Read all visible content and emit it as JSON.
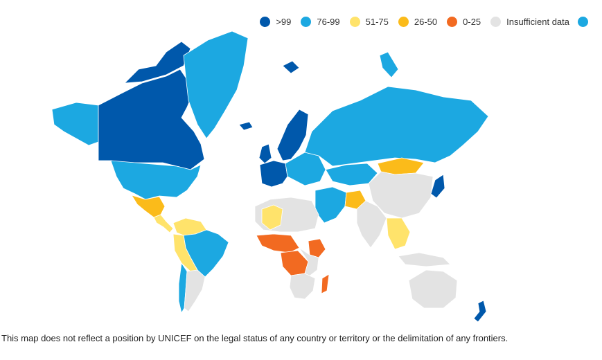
{
  "legend": {
    "items": [
      {
        "label": ">99",
        "color": "#0058ab"
      },
      {
        "label": "76-99",
        "color": "#1ca8e1"
      },
      {
        "label": "51-75",
        "color": "#ffe36b"
      },
      {
        "label": "26-50",
        "color": "#fbbb1a"
      },
      {
        "label": "0-25",
        "color": "#f26a21"
      },
      {
        "label": "Insufficient data",
        "color": "#e3e3e3"
      }
    ],
    "extra_color": "#1ca8e1"
  },
  "map": {
    "regions": [
      {
        "name": "canada",
        "category": ">99"
      },
      {
        "name": "alaska",
        "category": "76-99"
      },
      {
        "name": "usa",
        "category": "76-99"
      },
      {
        "name": "greenland",
        "category": "76-99"
      },
      {
        "name": "iceland",
        "category": ">99"
      },
      {
        "name": "mexico",
        "category": "26-50"
      },
      {
        "name": "central-america",
        "category": "51-75"
      },
      {
        "name": "colombia-venezuela",
        "category": "51-75"
      },
      {
        "name": "brazil",
        "category": "76-99"
      },
      {
        "name": "peru-bolivia",
        "category": "51-75"
      },
      {
        "name": "chile",
        "category": "76-99"
      },
      {
        "name": "argentina",
        "category": "Insufficient data"
      },
      {
        "name": "scandinavia",
        "category": ">99"
      },
      {
        "name": "western-europe",
        "category": ">99"
      },
      {
        "name": "eastern-europe",
        "category": "76-99"
      },
      {
        "name": "russia",
        "category": "76-99"
      },
      {
        "name": "kazakhstan",
        "category": "76-99"
      },
      {
        "name": "mongolia",
        "category": "26-50"
      },
      {
        "name": "china",
        "category": "Insufficient data"
      },
      {
        "name": "japan",
        "category": ">99"
      },
      {
        "name": "iran-middle-east",
        "category": "76-99"
      },
      {
        "name": "afghanistan",
        "category": "26-50"
      },
      {
        "name": "india",
        "category": "Insufficient data"
      },
      {
        "name": "southeast-asia",
        "category": "51-75"
      },
      {
        "name": "north-africa",
        "category": "Insufficient data"
      },
      {
        "name": "algeria",
        "category": "51-75"
      },
      {
        "name": "sahel",
        "category": "0-25"
      },
      {
        "name": "central-africa",
        "category": "0-25"
      },
      {
        "name": "ethiopia",
        "category": "0-25"
      },
      {
        "name": "southern-africa",
        "category": "Insufficient data"
      },
      {
        "name": "madagascar",
        "category": "0-25"
      },
      {
        "name": "australia",
        "category": "Insufficient data"
      },
      {
        "name": "new-zealand",
        "category": ">99"
      },
      {
        "name": "uk-ireland",
        "category": ">99"
      },
      {
        "name": "svalbard",
        "category": ">99"
      },
      {
        "name": "arctic-islands-russia",
        "category": "76-99"
      }
    ]
  },
  "disclaimer": "This map does not reflect a position by UNICEF on the legal status of any country or territory or the delimitation of any frontiers."
}
